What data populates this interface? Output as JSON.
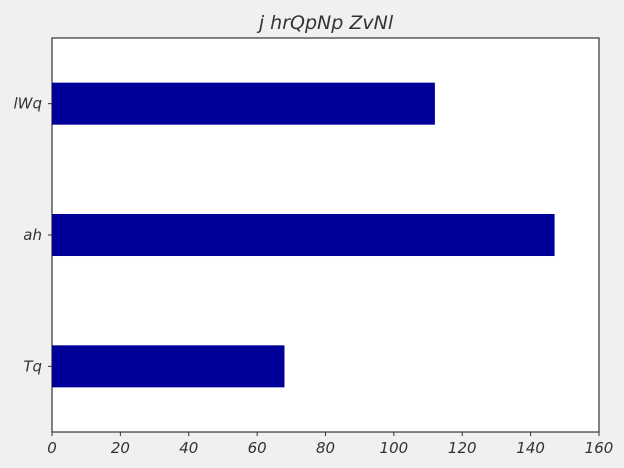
{
  "chart_data": {
    "type": "bar",
    "orientation": "horizontal",
    "title": "j hrQpNp ZvNl",
    "xlabel": "",
    "ylabel": "",
    "categories": [
      "lWq",
      "ah",
      "Tq"
    ],
    "values": [
      112,
      147,
      68
    ],
    "xlim": [
      0,
      160
    ],
    "xticks": [
      0,
      20,
      40,
      60,
      80,
      100,
      120,
      140,
      160
    ],
    "grid": false,
    "legend": "none",
    "bar_color": "#000099",
    "background_color": "#ffffff",
    "figure_color": "#f0f0f0"
  }
}
